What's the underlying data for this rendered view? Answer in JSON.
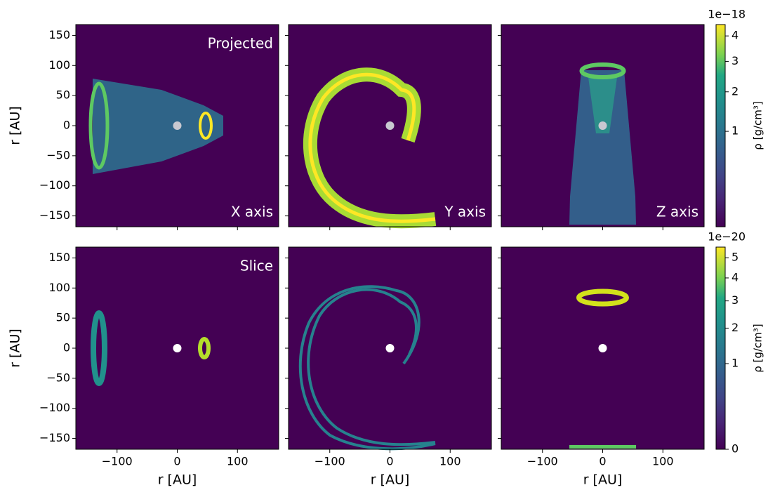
{
  "chart_data": {
    "type": "image-grid",
    "xlabel": "r [AU]",
    "ylabel": "r [AU]",
    "xlim": [
      -168.5,
      168.5
    ],
    "ylim": [
      -168,
      168
    ],
    "xticks": [
      {
        "value": -100,
        "label": "−100"
      },
      0,
      100
    ],
    "yticks": [
      {
        "value": -150,
        "label": "−150"
      },
      {
        "value": -100,
        "label": "−100"
      },
      {
        "value": -50,
        "label": "−50"
      },
      0,
      50,
      100,
      150
    ],
    "annotations": [
      {
        "panel": 0,
        "text": "Projected",
        "corner": "upper right"
      },
      {
        "panel": 0,
        "text": "X axis",
        "corner": "lower right"
      },
      {
        "panel": 1,
        "text": "Y axis",
        "corner": "lower right"
      },
      {
        "panel": 2,
        "text": "Z axis",
        "corner": "lower right"
      },
      {
        "panel": 3,
        "text": "Slice",
        "corner": "upper right"
      }
    ],
    "colorbars": [
      {
        "row": 0,
        "label": "ρ [g/cm³]",
        "offset_text": "1e−18",
        "scale": "sqrt",
        "clim": [
          0,
          4.49
        ],
        "ticks": [
          1,
          2,
          3,
          4
        ]
      },
      {
        "row": 1,
        "label": "ρ [g/cm³]",
        "offset_text": "1e−20",
        "scale": "sqrt",
        "clim": [
          0,
          5.57
        ],
        "ticks": [
          0,
          1,
          2,
          3,
          4,
          5
        ]
      }
    ]
  }
}
